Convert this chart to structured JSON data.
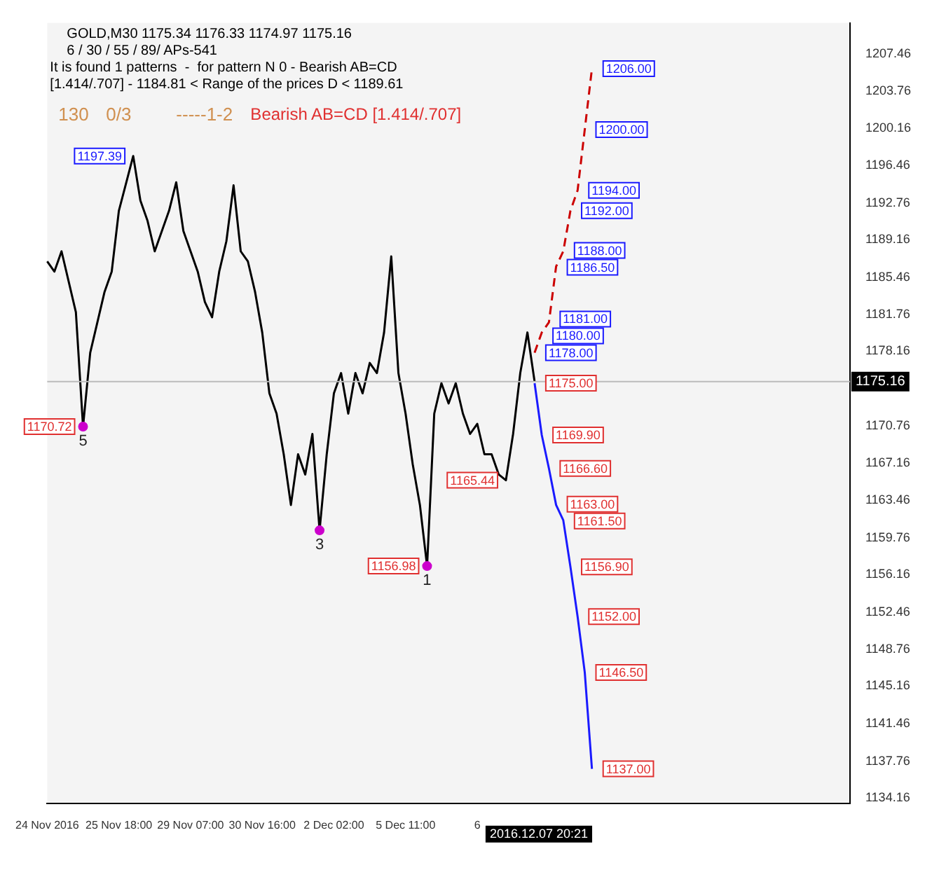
{
  "chart_data": {
    "type": "line",
    "title": "GOLD,M30 1175.34 1176.33 1174.97 1175.16",
    "subtitle": "6 / 30 / 55 / 89/ APs-541",
    "categories": [
      "24 Nov 2016",
      null,
      null,
      null,
      null,
      null,
      null,
      null,
      null,
      null,
      "25 Nov 18:00",
      null,
      null,
      null,
      null,
      null,
      null,
      null,
      null,
      null,
      "29 Nov 07:00",
      null,
      null,
      null,
      null,
      null,
      null,
      null,
      null,
      null,
      "30 Nov 16:00",
      null,
      null,
      null,
      null,
      null,
      null,
      null,
      null,
      null,
      "2 Dec 02:00",
      null,
      null,
      null,
      null,
      null,
      null,
      null,
      null,
      null,
      "5 Dec 11:00",
      null,
      null,
      null,
      null,
      null,
      null,
      null,
      null,
      null,
      "6",
      null,
      null,
      null,
      null,
      null,
      null,
      null,
      null,
      null,
      null,
      null,
      null,
      null,
      null,
      null,
      null,
      null,
      null,
      null,
      null,
      null,
      null,
      null,
      null,
      null,
      null,
      null,
      null,
      null,
      null,
      null,
      null,
      null,
      null,
      null,
      null,
      null,
      null,
      null,
      null,
      null,
      null,
      null,
      null,
      null,
      null,
      null,
      null,
      null,
      null,
      null,
      null
    ],
    "series": [
      {
        "type": "line",
        "color": "#000000",
        "values": [
          1187,
          1186,
          1188,
          1185,
          1182,
          1170.72,
          1178,
          null,
          1184,
          1186,
          1192,
          null,
          1197.39,
          1193,
          1191,
          1188,
          1190,
          1192,
          1194.8,
          1190,
          1188,
          1186,
          1183,
          1181.5,
          1186,
          1189,
          1194.5,
          1188,
          1187,
          1184,
          1180,
          1174,
          1172,
          1168,
          1163,
          1168,
          1166,
          1170,
          1160.5,
          1168,
          1174,
          1176,
          1172,
          1176,
          1174,
          1177,
          1176,
          1180,
          1187.5,
          1176,
          1172,
          1167,
          1163,
          1156.98,
          1172,
          1175,
          1173,
          1175,
          1172,
          1170,
          1171,
          1168,
          1168,
          1166,
          1165.44,
          1170,
          1176,
          1180,
          1175.16,
          null,
          null,
          null,
          null,
          null,
          null,
          null,
          null,
          null,
          null,
          null,
          null,
          null,
          null,
          null,
          null,
          null,
          null,
          null,
          null,
          null,
          null,
          null,
          null,
          null,
          null,
          null,
          null,
          null,
          null,
          null,
          null,
          null,
          null,
          null,
          null,
          null,
          null,
          null,
          null,
          null,
          null,
          null,
          null
        ],
        "value_labels": [
          null,
          null,
          null,
          null,
          null,
          null,
          null,
          null,
          null,
          null,
          null,
          null,
          "1197.39",
          null,
          null,
          null,
          null,
          null,
          null,
          null,
          null,
          null,
          null,
          null,
          null,
          null,
          null,
          null,
          null,
          null,
          null,
          null,
          null,
          null,
          null,
          null,
          null,
          null,
          null,
          null,
          null,
          null,
          null,
          null,
          null,
          null,
          null,
          null,
          null,
          null,
          null,
          null,
          null,
          null,
          null,
          null,
          null,
          null,
          null,
          null,
          null,
          null,
          null,
          null,
          "1165.44",
          null,
          null,
          null,
          null,
          null,
          null,
          null,
          null,
          null,
          null,
          null,
          null,
          null,
          null,
          null,
          null,
          null,
          null,
          null,
          null,
          null,
          null,
          null,
          null,
          null,
          null,
          null,
          null,
          null,
          null,
          null,
          null,
          null,
          null,
          null,
          null,
          null,
          null,
          null,
          null,
          null,
          null,
          null,
          null,
          null,
          null,
          null,
          null
        ]
      },
      {
        "type": "scatter",
        "color": "#cc00cc",
        "marker": "circle",
        "values": [
          null,
          null,
          null,
          null,
          null,
          1170.72,
          null,
          null,
          null,
          null,
          null,
          null,
          null,
          null,
          null,
          null,
          null,
          null,
          null,
          null,
          null,
          null,
          null,
          null,
          null,
          null,
          null,
          null,
          null,
          null,
          null,
          null,
          null,
          null,
          null,
          null,
          null,
          null,
          1160.5,
          null,
          null,
          null,
          null,
          null,
          null,
          null,
          null,
          null,
          null,
          null,
          null,
          null,
          null,
          1156.98,
          null,
          null,
          null,
          null,
          null,
          null,
          null,
          null,
          null,
          null,
          null,
          null,
          null,
          null,
          null,
          null,
          null,
          null,
          null,
          null,
          null,
          null,
          null,
          null,
          null,
          null,
          null,
          null,
          null,
          null,
          null,
          null,
          null,
          null,
          null,
          null,
          null,
          null,
          null,
          null,
          null,
          null,
          null,
          null,
          null,
          null,
          null,
          null,
          null,
          null,
          null,
          null,
          null,
          null,
          null,
          null,
          null,
          null,
          null
        ],
        "value_labels": [
          null,
          null,
          null,
          null,
          null,
          "1170.72",
          null,
          null,
          null,
          null,
          null,
          null,
          null,
          null,
          null,
          null,
          null,
          null,
          null,
          null,
          null,
          null,
          null,
          null,
          null,
          null,
          null,
          null,
          null,
          null,
          null,
          null,
          null,
          null,
          null,
          null,
          null,
          null,
          null,
          null,
          null,
          null,
          null,
          null,
          null,
          null,
          null,
          null,
          null,
          null,
          null,
          null,
          null,
          "1156.98",
          null,
          null,
          null,
          null,
          null,
          null,
          null,
          null,
          null,
          null,
          null,
          null,
          null,
          null,
          null,
          null,
          null,
          null,
          null,
          null,
          null,
          null,
          null,
          null,
          null,
          null,
          null,
          null,
          null,
          null,
          null,
          null,
          null,
          null,
          null,
          null,
          null,
          null,
          null,
          null,
          null,
          null,
          null,
          null,
          null,
          null,
          null,
          null,
          null,
          null,
          null,
          null,
          null,
          null,
          null,
          null,
          null,
          null,
          null
        ]
      },
      {
        "type": "line",
        "color": "#1a1aff",
        "line_style": "solid",
        "values": [
          null,
          null,
          null,
          null,
          null,
          null,
          null,
          null,
          null,
          null,
          null,
          null,
          null,
          null,
          null,
          null,
          null,
          null,
          null,
          null,
          null,
          null,
          null,
          null,
          null,
          null,
          null,
          null,
          null,
          null,
          null,
          null,
          null,
          null,
          null,
          null,
          null,
          null,
          null,
          null,
          null,
          null,
          null,
          null,
          null,
          null,
          null,
          null,
          null,
          null,
          null,
          null,
          null,
          null,
          null,
          null,
          null,
          null,
          null,
          null,
          null,
          null,
          null,
          null,
          null,
          null,
          null,
          null,
          1175,
          1169.9,
          1166.6,
          1163,
          1161.5,
          1156.9,
          1152,
          1146.5,
          1137,
          null,
          null,
          null,
          null,
          null,
          null,
          null,
          null,
          null,
          null,
          null,
          null,
          null,
          null,
          null,
          null,
          null,
          null,
          null,
          null,
          null,
          null,
          null,
          null,
          null,
          null,
          null,
          null,
          null,
          null,
          null,
          null,
          null,
          null,
          null,
          null
        ],
        "value_labels": [
          null,
          null,
          null,
          null,
          null,
          null,
          null,
          null,
          null,
          null,
          null,
          null,
          null,
          null,
          null,
          null,
          null,
          null,
          null,
          null,
          null,
          null,
          null,
          null,
          null,
          null,
          null,
          null,
          null,
          null,
          null,
          null,
          null,
          null,
          null,
          null,
          null,
          null,
          null,
          null,
          null,
          null,
          null,
          null,
          null,
          null,
          null,
          null,
          null,
          null,
          null,
          null,
          null,
          null,
          null,
          null,
          null,
          null,
          null,
          null,
          null,
          null,
          null,
          null,
          null,
          null,
          null,
          null,
          "1175.00",
          "1169.90",
          "1166.60",
          "1163.00",
          "1161.50",
          "1156.90",
          "1152.00",
          "1146.50",
          "1137.00",
          null,
          null,
          null,
          null,
          null,
          null,
          null,
          null,
          null,
          null,
          null,
          null,
          null,
          null,
          null,
          null,
          null,
          null,
          null,
          null,
          null,
          null,
          null,
          null,
          null,
          null,
          null,
          null,
          null,
          null,
          null,
          null,
          null,
          null,
          null,
          null
        ]
      },
      {
        "type": "line",
        "color": "#cc0000",
        "line_style": "dashed",
        "values": [
          null,
          null,
          null,
          null,
          null,
          null,
          null,
          null,
          null,
          null,
          null,
          null,
          null,
          null,
          null,
          null,
          null,
          null,
          null,
          null,
          null,
          null,
          null,
          null,
          null,
          null,
          null,
          null,
          null,
          null,
          null,
          null,
          null,
          null,
          null,
          null,
          null,
          null,
          null,
          null,
          null,
          null,
          null,
          null,
          null,
          null,
          null,
          null,
          null,
          null,
          null,
          null,
          null,
          null,
          null,
          null,
          null,
          null,
          null,
          null,
          null,
          null,
          null,
          null,
          null,
          null,
          null,
          null,
          1178,
          1180,
          1181,
          1186.5,
          1188,
          1192,
          1194,
          1200,
          1206,
          null,
          null,
          null,
          null,
          null,
          null,
          null,
          null,
          null,
          null,
          null,
          null,
          null,
          null,
          null,
          null,
          null,
          null,
          null,
          null,
          null,
          null,
          null,
          null,
          null,
          null,
          null,
          null,
          null,
          null,
          null,
          null,
          null,
          null,
          null,
          null
        ],
        "value_labels": [
          null,
          null,
          null,
          null,
          null,
          null,
          null,
          null,
          null,
          null,
          null,
          null,
          null,
          null,
          null,
          null,
          null,
          null,
          null,
          null,
          null,
          null,
          null,
          null,
          null,
          null,
          null,
          null,
          null,
          null,
          null,
          null,
          null,
          null,
          null,
          null,
          null,
          null,
          null,
          null,
          null,
          null,
          null,
          null,
          null,
          null,
          null,
          null,
          null,
          null,
          null,
          null,
          null,
          null,
          null,
          null,
          null,
          null,
          null,
          null,
          null,
          null,
          null,
          null,
          null,
          null,
          null,
          null,
          "1178.00",
          "1180.00",
          "1181.00",
          "1186.50",
          "1188.00",
          "1192.00",
          "1194.00",
          "1200.00",
          "1206.00",
          null,
          null,
          null,
          null,
          null,
          null,
          null,
          null,
          null,
          null,
          null,
          null,
          null,
          null,
          null,
          null,
          null,
          null,
          null,
          null,
          null,
          null,
          null,
          null,
          null,
          null,
          null,
          null,
          null,
          null,
          null,
          null,
          null,
          null,
          null,
          null
        ]
      }
    ],
    "ylim": [
      1133.6,
      1210.5
    ],
    "yticks": [
      1207.46,
      1203.76,
      1200.16,
      1196.46,
      1192.76,
      1189.16,
      1185.46,
      1181.76,
      1178.16,
      1170.76,
      1167.16,
      1163.46,
      1159.76,
      1156.16,
      1152.46,
      1148.76,
      1145.16,
      1141.46,
      1137.76,
      1134.16
    ],
    "ref_lines": [
      {
        "axis": "y",
        "value": 1175.16,
        "label": "1175.16",
        "color": "#bbbbbb"
      }
    ],
    "grid": false,
    "legend": false,
    "marker": "none",
    "annotations": [
      "It is found 1 patterns  -  for pattern N 0 - Bearish AB=CD [1.414/.707] - 1184.81 < Range of the prices D < 1189.61",
      "130",
      "0/3",
      "-----1-2",
      "Bearish AB=CD [1.414/.707]",
      "5",
      "3",
      "1",
      "2016.12.07 20:21"
    ]
  }
}
